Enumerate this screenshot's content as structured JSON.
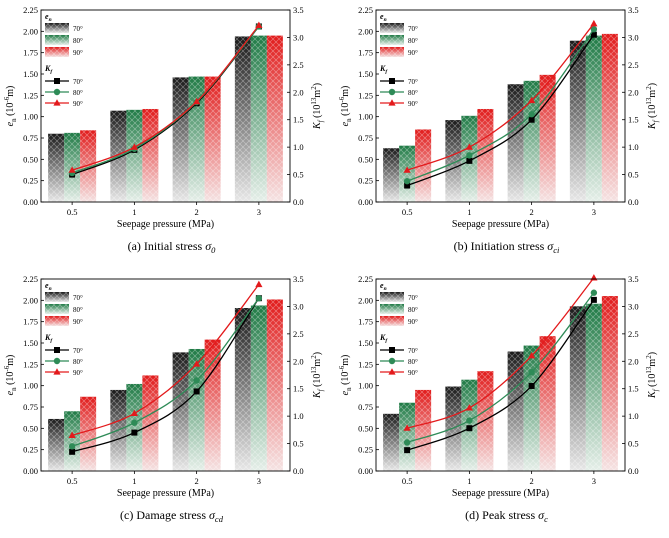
{
  "figure": {
    "colors": {
      "s70": "#000000",
      "s80": "#2e8b57",
      "s90": "#e31a1c"
    },
    "x_label": "Seepage pressure (MPa)",
    "y_left_label": "e_n (10^-6 m)",
    "y_right_label": "K_f (10^13 m^2)"
  },
  "chart_data": [
    {
      "type": "bar+line",
      "caption": "(a) Initial stress σ0",
      "caption_main": "(a) Initial stress ",
      "caption_sym": "σ",
      "caption_sub": "0",
      "xlabel": "Seepage pressure (MPa)",
      "ylabel": "e_n (10^-6 m)",
      "y2label": "K_f (10^13 m^2)",
      "categories": [
        "0.5",
        "1",
        "2",
        "3"
      ],
      "ylim": [
        0,
        2.25
      ],
      "yticks": [
        "0.00",
        "0.25",
        "0.50",
        "0.75",
        "1.00",
        "1.25",
        "1.50",
        "1.75",
        "2.00",
        "2.25"
      ],
      "y2lim": [
        0,
        3.5
      ],
      "y2ticks": [
        "0.0",
        "0.5",
        "1.0",
        "1.5",
        "2.0",
        "2.5",
        "3.0",
        "3.5"
      ],
      "legend_en": "e_n",
      "legend_kf": "K_f",
      "legend_entries": [
        "70°",
        "80°",
        "90°"
      ],
      "bars": [
        {
          "name": "70°",
          "values": [
            0.8,
            1.07,
            1.46,
            1.94
          ]
        },
        {
          "name": "80°",
          "values": [
            0.81,
            1.08,
            1.47,
            1.95
          ]
        },
        {
          "name": "90°",
          "values": [
            0.84,
            1.09,
            1.47,
            1.95
          ]
        }
      ],
      "lines": [
        {
          "name": "70°",
          "values": [
            0.5,
            0.95,
            1.8,
            3.2
          ]
        },
        {
          "name": "80°",
          "values": [
            0.53,
            0.97,
            1.82,
            3.2
          ]
        },
        {
          "name": "90°",
          "values": [
            0.58,
            1.0,
            1.83,
            3.22
          ]
        }
      ]
    },
    {
      "type": "bar+line",
      "caption": "(b) Initiation stress σci",
      "caption_main": "(b) Initiation stress ",
      "caption_sym": "σ",
      "caption_sub": "ci",
      "xlabel": "Seepage pressure (MPa)",
      "ylabel": "e_n (10^-6 m)",
      "y2label": "K_f (10^13 m^2)",
      "categories": [
        "0.5",
        "1",
        "2",
        "3"
      ],
      "ylim": [
        0,
        2.25
      ],
      "yticks": [
        "0.00",
        "0.25",
        "0.50",
        "0.75",
        "1.00",
        "1.25",
        "1.50",
        "1.75",
        "2.00",
        "2.25"
      ],
      "y2lim": [
        0,
        3.5
      ],
      "y2ticks": [
        "0.0",
        "0.5",
        "1.0",
        "1.5",
        "2.0",
        "2.5",
        "3.0",
        "3.5"
      ],
      "legend_en": "e_n",
      "legend_kf": "K_f",
      "legend_entries": [
        "70°",
        "80°",
        "90°"
      ],
      "bars": [
        {
          "name": "70°",
          "values": [
            0.63,
            0.96,
            1.38,
            1.89
          ]
        },
        {
          "name": "80°",
          "values": [
            0.66,
            1.01,
            1.42,
            1.95
          ]
        },
        {
          "name": "90°",
          "values": [
            0.85,
            1.09,
            1.49,
            1.97
          ]
        }
      ],
      "lines": [
        {
          "name": "70°",
          "values": [
            0.3,
            0.75,
            1.5,
            3.05
          ]
        },
        {
          "name": "80°",
          "values": [
            0.38,
            0.85,
            1.6,
            3.15
          ]
        },
        {
          "name": "90°",
          "values": [
            0.58,
            1.0,
            1.85,
            3.25
          ]
        }
      ]
    },
    {
      "type": "bar+line",
      "caption": "(c) Damage stress σcd",
      "caption_main": "(c) Damage stress ",
      "caption_sym": "σ",
      "caption_sub": "cd",
      "xlabel": "Seepage pressure (MPa)",
      "ylabel": "e_n (10^-6 m)",
      "y2label": "K_f (10^13 m^2)",
      "categories": [
        "0.5",
        "1",
        "2",
        "3"
      ],
      "ylim": [
        0,
        2.25
      ],
      "yticks": [
        "0.00",
        "0.25",
        "0.50",
        "0.75",
        "1.00",
        "1.25",
        "1.50",
        "1.75",
        "2.00",
        "2.25"
      ],
      "y2lim": [
        0,
        3.5
      ],
      "y2ticks": [
        "0.0",
        "0.5",
        "1.0",
        "1.5",
        "2.0",
        "2.5",
        "3.0",
        "3.5"
      ],
      "legend_en": "e_n",
      "legend_kf": "K_f",
      "legend_entries": [
        "70°",
        "80°",
        "90°"
      ],
      "bars": [
        {
          "name": "70°",
          "values": [
            0.61,
            0.95,
            1.39,
            1.91
          ]
        },
        {
          "name": "80°",
          "values": [
            0.7,
            1.02,
            1.43,
            1.94
          ]
        },
        {
          "name": "90°",
          "values": [
            0.87,
            1.12,
            1.54,
            2.01
          ]
        }
      ],
      "lines": [
        {
          "name": "70°",
          "values": [
            0.35,
            0.7,
            1.45,
            3.15
          ]
        },
        {
          "name": "80°",
          "values": [
            0.45,
            0.88,
            1.65,
            3.15
          ]
        },
        {
          "name": "90°",
          "values": [
            0.65,
            1.05,
            1.95,
            3.4
          ]
        }
      ]
    },
    {
      "type": "bar+line",
      "caption": "(d) Peak stress σc",
      "caption_main": "(d) Peak stress ",
      "caption_sym": "σ",
      "caption_sub": "c",
      "xlabel": "Seepage pressure (MPa)",
      "ylabel": "e_n (10^-6 m)",
      "y2label": "K_f (10^13 m^2)",
      "categories": [
        "0.5",
        "1",
        "2",
        "3"
      ],
      "ylim": [
        0,
        2.25
      ],
      "yticks": [
        "0.00",
        "0.25",
        "0.50",
        "0.75",
        "1.00",
        "1.25",
        "1.50",
        "1.75",
        "2.00",
        "2.25"
      ],
      "y2lim": [
        0,
        3.5
      ],
      "y2ticks": [
        "0.0",
        "0.5",
        "1.0",
        "1.5",
        "2.0",
        "2.5",
        "3.0",
        "3.5"
      ],
      "legend_en": "e_n",
      "legend_kf": "K_f",
      "legend_entries": [
        "70°",
        "80°",
        "90°"
      ],
      "bars": [
        {
          "name": "70°",
          "values": [
            0.67,
            0.99,
            1.4,
            1.93
          ]
        },
        {
          "name": "80°",
          "values": [
            0.8,
            1.07,
            1.47,
            1.96
          ]
        },
        {
          "name": "90°",
          "values": [
            0.95,
            1.17,
            1.58,
            2.05
          ]
        }
      ],
      "lines": [
        {
          "name": "70°",
          "values": [
            0.38,
            0.78,
            1.55,
            3.12
          ]
        },
        {
          "name": "80°",
          "values": [
            0.52,
            0.92,
            1.8,
            3.25
          ]
        },
        {
          "name": "90°",
          "values": [
            0.78,
            1.15,
            2.1,
            3.52
          ]
        }
      ]
    }
  ]
}
